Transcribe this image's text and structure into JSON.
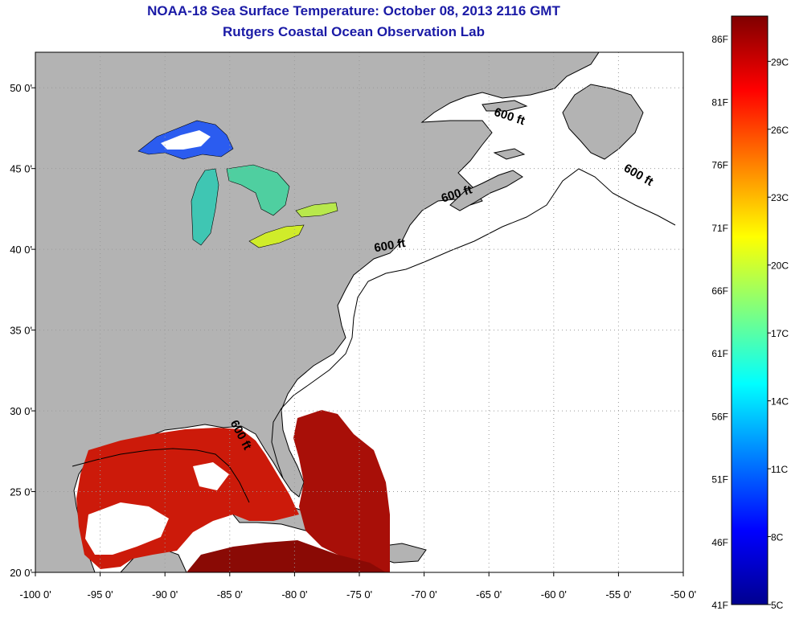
{
  "title": "NOAA-18 Sea Surface Temperature:  October 08, 2013 2116 GMT",
  "subtitle": "Rutgers Coastal Ocean Observation Lab",
  "map": {
    "lon_range": [
      -100,
      -50
    ],
    "lat_range": [
      20,
      52.2
    ],
    "lon_labels": [
      {
        "lon": -100,
        "text": "-100 0'"
      },
      {
        "lon": -95,
        "text": "-95 0'"
      },
      {
        "lon": -90,
        "text": "-90 0'"
      },
      {
        "lon": -85,
        "text": "-85 0'"
      },
      {
        "lon": -80,
        "text": "-80 0'"
      },
      {
        "lon": -75,
        "text": "-75 0'"
      },
      {
        "lon": -70,
        "text": "-70 0'"
      },
      {
        "lon": -65,
        "text": "-65 0'"
      },
      {
        "lon": -60,
        "text": "-60 0'"
      },
      {
        "lon": -55,
        "text": "-55 0'"
      },
      {
        "lon": -50,
        "text": "-50 0'"
      }
    ],
    "lat_labels": [
      {
        "lat": 20,
        "text": "20 0'"
      },
      {
        "lat": 25,
        "text": "25 0'"
      },
      {
        "lat": 30,
        "text": "30 0'"
      },
      {
        "lat": 35,
        "text": "35 0'"
      },
      {
        "lat": 40,
        "text": "40 0'"
      },
      {
        "lat": 45,
        "text": "45 0'"
      },
      {
        "lat": 50,
        "text": "50 0'"
      }
    ],
    "contour_labels": [
      {
        "lon": -63.5,
        "lat": 48.0,
        "text": "600 ft",
        "rotate": 18
      },
      {
        "lon": -53.6,
        "lat": 44.4,
        "text": "600 ft",
        "rotate": 30
      },
      {
        "lon": -67.4,
        "lat": 43.2,
        "text": "600 ft",
        "rotate": -18
      },
      {
        "lon": -72.6,
        "lat": 40.0,
        "text": "600 ft",
        "rotate": -10
      },
      {
        "lon": -84.4,
        "lat": 28.4,
        "text": "600 ft",
        "rotate": 62
      }
    ],
    "colors": {
      "land": "#b3b3b3",
      "ocean": "#ffffff",
      "grid": "#9a9a9a"
    }
  },
  "colorbar": {
    "f_labels": [
      "86F",
      "81F",
      "76F",
      "71F",
      "66F",
      "61F",
      "56F",
      "51F",
      "46F",
      "41F"
    ],
    "c_labels": [
      "29C",
      "26C",
      "23C",
      "20C",
      "17C",
      "14C",
      "11C",
      "8C",
      "5C"
    ],
    "range_c": [
      5,
      31
    ],
    "colors": [
      "#00008f",
      "#0000ff",
      "#007fff",
      "#00ffff",
      "#7fff7f",
      "#ffff00",
      "#ff7f00",
      "#ff0000",
      "#7f0000"
    ]
  }
}
